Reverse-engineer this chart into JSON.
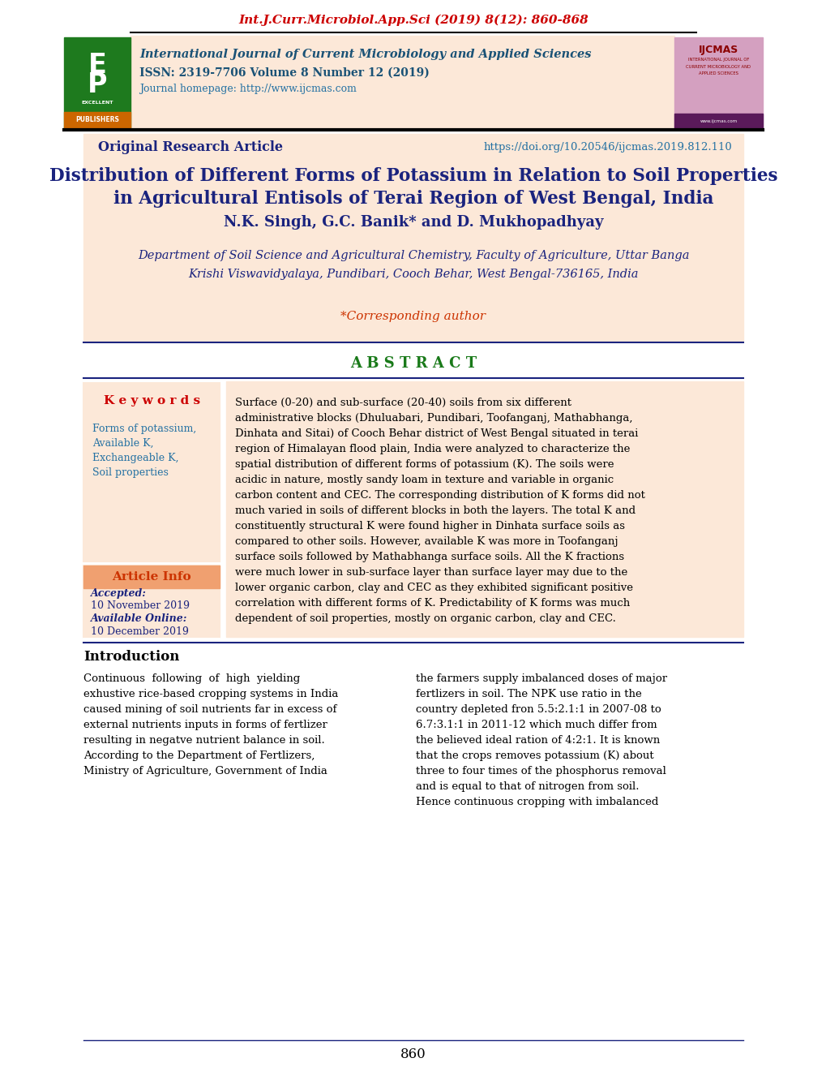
{
  "page_bg": "#ffffff",
  "header_bg": "#fce8d8",
  "journal_title_italic": "Int.J.Curr.Microbiol.App.Sci (2019) 8(12): 860-868",
  "journal_title_color": "#cc0000",
  "journal_full_name": "International Journal of Current Microbiology and Applied Sciences",
  "journal_issn": "ISSN: 2319-7706 Volume 8 Number 12 (2019)",
  "journal_homepage": "Journal homepage: http://www.ijcmas.com",
  "journal_text_color": "#1a5276",
  "homepage_color": "#2471a3",
  "ep_box_color": "#1e7a1e",
  "publishers_bg": "#cc6600",
  "info_box_bg": "#fce8d8",
  "article_type_color": "#1a237e",
  "doi_color": "#2471a3",
  "article_type": "Original Research Article",
  "doi": "https://doi.org/10.20546/ijcmas.2019.812.110",
  "paper_title_line1": "Distribution of Different Forms of Potassium in Relation to Soil Properties",
  "paper_title_line2_pre": "in Agricultural Entisols of ",
  "paper_title_terai": "Terai",
  "paper_title_line2_post": " Region of West Bengal, India",
  "paper_title_color": "#1a237e",
  "authors": "N.K. Singh, G.C. Banik* and D. Mukhopadhyay",
  "authors_color": "#1a237e",
  "affiliation_line1": "Department of Soil Science and Agricultural Chemistry, Faculty of Agriculture, Uttar Banga",
  "affiliation_line2": "Krishi Viswavidyalaya, Pundibari, Cooch Behar, West Bengal-736165, India",
  "affiliation_color": "#1a237e",
  "corresponding_author": "*Corresponding author",
  "corresponding_color": "#cc3300",
  "abstract_header": "A B S T R A C T",
  "abstract_header_color": "#1a7a1a",
  "abstract_line_color": "#1a237e",
  "abstract_bg": "#fce8d8",
  "abstract_text_lines": [
    "Surface (0-20) and sub-surface (20-40) soils from six different",
    "administrative blocks (Dhuluabari, Pundibari, Toofanganj, Mathabhanga,",
    "Dinhata and Sitai) of Cooch Behar district of West Bengal situated in terai",
    "region of Himalayan flood plain, India were analyzed to characterize the",
    "spatial distribution of different forms of potassium (K). The soils were",
    "acidic in nature, mostly sandy loam in texture and variable in organic",
    "carbon content and CEC. The corresponding distribution of K forms did not",
    "much varied in soils of different blocks in both the layers. The total K and",
    "constituently structural K were found higher in Dinhata surface soils as",
    "compared to other soils. However, available K was more in Toofanganj",
    "surface soils followed by Mathabhanga surface soils. All the K fractions",
    "were much lower in sub-surface layer than surface layer may due to the",
    "lower organic carbon, clay and CEC as they exhibited significant positive",
    "correlation with different forms of K. Predictability of K forms was much",
    "dependent of soil properties, mostly on organic carbon, clay and CEC."
  ],
  "keywords_header": "K e y w o r d s",
  "keywords_header_color": "#cc0000",
  "keywords_lines": [
    "Forms of potassium,",
    "Available K,",
    "Exchangeable K,",
    "Soil properties"
  ],
  "keywords_text_color": "#2471a3",
  "article_info_header": "Article Info",
  "article_info_header_color": "#cc3300",
  "article_info_header_bg": "#f0a070",
  "accepted_label": "Accepted:",
  "accepted_date": "10 November 2019",
  "available_label": "Available Online:",
  "available_date": "10 December 2019",
  "article_info_text_color": "#1a237e",
  "sidebar_box_bg": "#fce8d8",
  "sidebar_border_color": "#1a237e",
  "intro_header": "Introduction",
  "intro_header_color": "#000000",
  "intro_text_col1_lines": [
    "Continuous  following  of  high  yielding",
    "exhustive rice-based cropping systems in India",
    "caused mining of soil nutrients far in excess of",
    "external nutrients inputs in forms of fertlizer",
    "resulting in negatve nutrient balance in soil.",
    "According to the Department of Fertlizers,",
    "Ministry of Agriculture, Government of India"
  ],
  "intro_text_col2_lines": [
    "the farmers supply imbalanced doses of major",
    "fertlizers in soil. The NPK use ratio in the",
    "country depleted fron 5.5:2.1:1 in 2007-08 to",
    "6.7:3.1:1 in 2011-12 which much differ from",
    "the believed ideal ration of 4:2:1. It is known",
    "that the crops removes potassium (K) about",
    "three to four times of the phosphorus removal",
    "and is equal to that of nitrogen from soil.",
    "Hence continuous cropping with imbalanced"
  ],
  "intro_text_color": "#000000",
  "page_number": "860",
  "separator_color": "#1a237e",
  "top_separator_color": "#000000",
  "ijcmas_box_color": "#d4a0c0",
  "ijcmas_text_color": "#8b0000",
  "ijcmas_bottom_color": "#5a1a5a"
}
